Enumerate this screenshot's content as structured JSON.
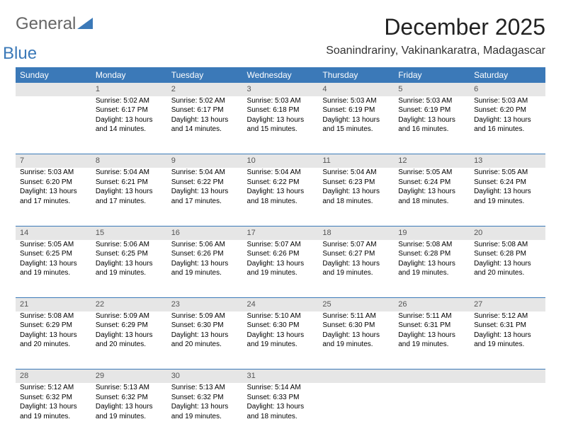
{
  "logo": {
    "word1": "General",
    "word2": "Blue"
  },
  "title": "December 2025",
  "location": "Soanindrariny, Vakinankaratra, Madagascar",
  "headers": [
    "Sunday",
    "Monday",
    "Tuesday",
    "Wednesday",
    "Thursday",
    "Friday",
    "Saturday"
  ],
  "colors": {
    "header_bg": "#3b79b8",
    "header_text": "#ffffff",
    "daynum_bg": "#e6e6e6",
    "daynum_text": "#555555",
    "sep_line": "#3b79b8",
    "body_text": "#000000"
  },
  "fonts": {
    "title_size_pt": 24,
    "location_size_pt": 12,
    "header_size_pt": 9,
    "daynum_size_pt": 8,
    "cell_size_pt": 7.5
  },
  "weeks": [
    {
      "nums": [
        "",
        "1",
        "2",
        "3",
        "4",
        "5",
        "6"
      ],
      "cells": [
        [],
        [
          "Sunrise: 5:02 AM",
          "Sunset: 6:17 PM",
          "Daylight: 13 hours",
          "and 14 minutes."
        ],
        [
          "Sunrise: 5:02 AM",
          "Sunset: 6:17 PM",
          "Daylight: 13 hours",
          "and 14 minutes."
        ],
        [
          "Sunrise: 5:03 AM",
          "Sunset: 6:18 PM",
          "Daylight: 13 hours",
          "and 15 minutes."
        ],
        [
          "Sunrise: 5:03 AM",
          "Sunset: 6:19 PM",
          "Daylight: 13 hours",
          "and 15 minutes."
        ],
        [
          "Sunrise: 5:03 AM",
          "Sunset: 6:19 PM",
          "Daylight: 13 hours",
          "and 16 minutes."
        ],
        [
          "Sunrise: 5:03 AM",
          "Sunset: 6:20 PM",
          "Daylight: 13 hours",
          "and 16 minutes."
        ]
      ]
    },
    {
      "nums": [
        "7",
        "8",
        "9",
        "10",
        "11",
        "12",
        "13"
      ],
      "cells": [
        [
          "Sunrise: 5:03 AM",
          "Sunset: 6:20 PM",
          "Daylight: 13 hours",
          "and 17 minutes."
        ],
        [
          "Sunrise: 5:04 AM",
          "Sunset: 6:21 PM",
          "Daylight: 13 hours",
          "and 17 minutes."
        ],
        [
          "Sunrise: 5:04 AM",
          "Sunset: 6:22 PM",
          "Daylight: 13 hours",
          "and 17 minutes."
        ],
        [
          "Sunrise: 5:04 AM",
          "Sunset: 6:22 PM",
          "Daylight: 13 hours",
          "and 18 minutes."
        ],
        [
          "Sunrise: 5:04 AM",
          "Sunset: 6:23 PM",
          "Daylight: 13 hours",
          "and 18 minutes."
        ],
        [
          "Sunrise: 5:05 AM",
          "Sunset: 6:24 PM",
          "Daylight: 13 hours",
          "and 18 minutes."
        ],
        [
          "Sunrise: 5:05 AM",
          "Sunset: 6:24 PM",
          "Daylight: 13 hours",
          "and 19 minutes."
        ]
      ]
    },
    {
      "nums": [
        "14",
        "15",
        "16",
        "17",
        "18",
        "19",
        "20"
      ],
      "cells": [
        [
          "Sunrise: 5:05 AM",
          "Sunset: 6:25 PM",
          "Daylight: 13 hours",
          "and 19 minutes."
        ],
        [
          "Sunrise: 5:06 AM",
          "Sunset: 6:25 PM",
          "Daylight: 13 hours",
          "and 19 minutes."
        ],
        [
          "Sunrise: 5:06 AM",
          "Sunset: 6:26 PM",
          "Daylight: 13 hours",
          "and 19 minutes."
        ],
        [
          "Sunrise: 5:07 AM",
          "Sunset: 6:26 PM",
          "Daylight: 13 hours",
          "and 19 minutes."
        ],
        [
          "Sunrise: 5:07 AM",
          "Sunset: 6:27 PM",
          "Daylight: 13 hours",
          "and 19 minutes."
        ],
        [
          "Sunrise: 5:08 AM",
          "Sunset: 6:28 PM",
          "Daylight: 13 hours",
          "and 19 minutes."
        ],
        [
          "Sunrise: 5:08 AM",
          "Sunset: 6:28 PM",
          "Daylight: 13 hours",
          "and 20 minutes."
        ]
      ]
    },
    {
      "nums": [
        "21",
        "22",
        "23",
        "24",
        "25",
        "26",
        "27"
      ],
      "cells": [
        [
          "Sunrise: 5:08 AM",
          "Sunset: 6:29 PM",
          "Daylight: 13 hours",
          "and 20 minutes."
        ],
        [
          "Sunrise: 5:09 AM",
          "Sunset: 6:29 PM",
          "Daylight: 13 hours",
          "and 20 minutes."
        ],
        [
          "Sunrise: 5:09 AM",
          "Sunset: 6:30 PM",
          "Daylight: 13 hours",
          "and 20 minutes."
        ],
        [
          "Sunrise: 5:10 AM",
          "Sunset: 6:30 PM",
          "Daylight: 13 hours",
          "and 19 minutes."
        ],
        [
          "Sunrise: 5:11 AM",
          "Sunset: 6:30 PM",
          "Daylight: 13 hours",
          "and 19 minutes."
        ],
        [
          "Sunrise: 5:11 AM",
          "Sunset: 6:31 PM",
          "Daylight: 13 hours",
          "and 19 minutes."
        ],
        [
          "Sunrise: 5:12 AM",
          "Sunset: 6:31 PM",
          "Daylight: 13 hours",
          "and 19 minutes."
        ]
      ]
    },
    {
      "nums": [
        "28",
        "29",
        "30",
        "31",
        "",
        "",
        ""
      ],
      "cells": [
        [
          "Sunrise: 5:12 AM",
          "Sunset: 6:32 PM",
          "Daylight: 13 hours",
          "and 19 minutes."
        ],
        [
          "Sunrise: 5:13 AM",
          "Sunset: 6:32 PM",
          "Daylight: 13 hours",
          "and 19 minutes."
        ],
        [
          "Sunrise: 5:13 AM",
          "Sunset: 6:32 PM",
          "Daylight: 13 hours",
          "and 19 minutes."
        ],
        [
          "Sunrise: 5:14 AM",
          "Sunset: 6:33 PM",
          "Daylight: 13 hours",
          "and 18 minutes."
        ],
        [],
        [],
        []
      ]
    }
  ]
}
